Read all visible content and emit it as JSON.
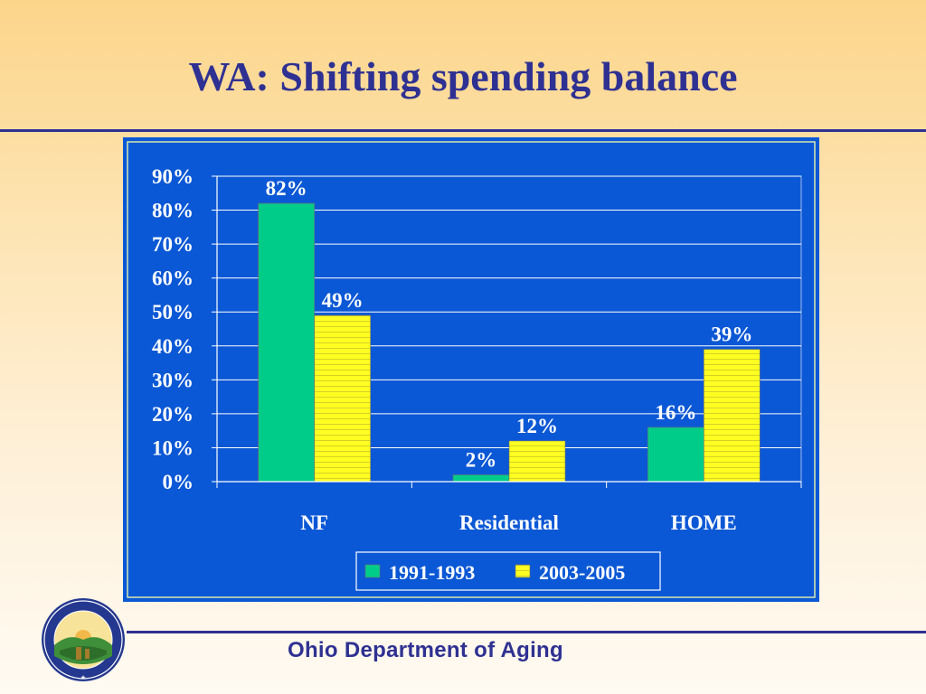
{
  "slide": {
    "title": "WA: Shifting spending balance",
    "footer": "Ohio Department of Aging",
    "seal_text": "OHIO DEPARTMENT OF AGING"
  },
  "colors": {
    "title": "#2e3192",
    "chart_background": "#0b58d6",
    "series_1": "#00cc8a",
    "series_2": "#ffff22"
  },
  "chart_data": {
    "type": "bar",
    "title": "",
    "xlabel": "",
    "ylabel": "",
    "categories": [
      "NF",
      "Residential",
      "HOME"
    ],
    "series": [
      {
        "name": "1991-1993",
        "values": [
          82,
          2,
          16
        ],
        "labels": [
          "82%",
          "2%",
          "16%"
        ],
        "color": "#00cc8a"
      },
      {
        "name": "2003-2005",
        "values": [
          49,
          12,
          39
        ],
        "labels": [
          "49%",
          "12%",
          "39%"
        ],
        "color": "#ffff22"
      }
    ],
    "ylim": [
      0,
      90
    ],
    "yticks": [
      "0%",
      "10%",
      "20%",
      "30%",
      "40%",
      "50%",
      "60%",
      "70%",
      "80%",
      "90%"
    ],
    "grid": true,
    "legend": "bottom"
  }
}
